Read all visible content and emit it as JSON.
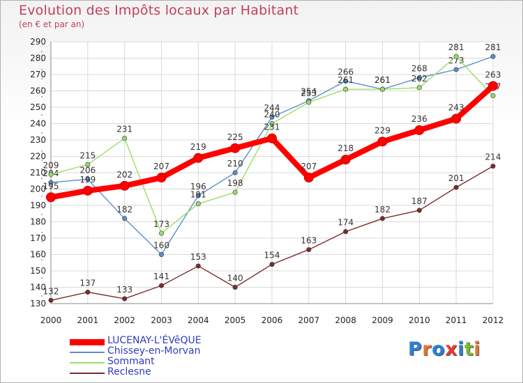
{
  "header": {
    "title": "Evolution des Impôts locaux par Habitant",
    "subtitle": "(en € et par an)"
  },
  "logo": {
    "text": "Proxiti",
    "letters": [
      {
        "ch": "P",
        "color": "#2b7fd4"
      },
      {
        "ch": "r",
        "color": "#e8742a"
      },
      {
        "ch": "o",
        "color": "#2b7fd4"
      },
      {
        "ch": "x",
        "color": "#e83a2a"
      },
      {
        "ch": "i",
        "color": "#2b7fd4"
      },
      {
        "ch": "t",
        "color": "#7ab830"
      },
      {
        "ch": "i",
        "color": "#e8742a"
      }
    ]
  },
  "chart_data": {
    "type": "line",
    "title": "Evolution des Impôts locaux par Habitant",
    "subtitle": "(en € et par an)",
    "x": [
      2000,
      2001,
      2002,
      2003,
      2004,
      2005,
      2006,
      2007,
      2008,
      2009,
      2010,
      2011,
      2012
    ],
    "ylim": [
      130,
      290
    ],
    "yticks": [
      130,
      140,
      150,
      160,
      170,
      180,
      190,
      200,
      210,
      220,
      230,
      240,
      250,
      260,
      270,
      280,
      290
    ],
    "grid": true,
    "legend_position": "bottom-left",
    "series": [
      {
        "name": "LUCENAY-L'ÉVêQUE",
        "color": "#ff0000",
        "emphasis": true,
        "values": [
          195,
          199,
          202,
          207,
          219,
          225,
          231,
          207,
          218,
          229,
          236,
          243,
          263
        ],
        "labels": [
          "195",
          "199",
          "202",
          "207",
          "219",
          "225",
          "231",
          "207",
          "218",
          "229",
          "236",
          "243",
          "263"
        ]
      },
      {
        "name": "Chissey-en-Morvan",
        "color": "#5b8ec9",
        "values": [
          204,
          206,
          182,
          160,
          196,
          210,
          244,
          254,
          266,
          261,
          268,
          273,
          281
        ],
        "labels": [
          "204",
          "206",
          "182",
          "160",
          "196",
          "210",
          "244",
          "254",
          "266",
          "261",
          "268",
          "273",
          "281"
        ]
      },
      {
        "name": "Sommant",
        "color": "#99dd66",
        "values": [
          209,
          215,
          231,
          173,
          191,
          198,
          240,
          253,
          261,
          261,
          262,
          281,
          257
        ],
        "labels": [
          "209",
          "215",
          "231",
          "173",
          "191",
          "198",
          "240",
          "253",
          "261",
          "261",
          "262",
          "281",
          "257"
        ]
      },
      {
        "name": "Reclesne",
        "color": "#7a2c2c",
        "values": [
          132,
          137,
          133,
          141,
          153,
          140,
          154,
          163,
          174,
          182,
          187,
          201,
          214
        ],
        "labels": [
          "132",
          "137",
          "133",
          "141",
          "153",
          "140",
          "154",
          "163",
          "174",
          "182",
          "187",
          "201",
          "214"
        ]
      }
    ]
  }
}
